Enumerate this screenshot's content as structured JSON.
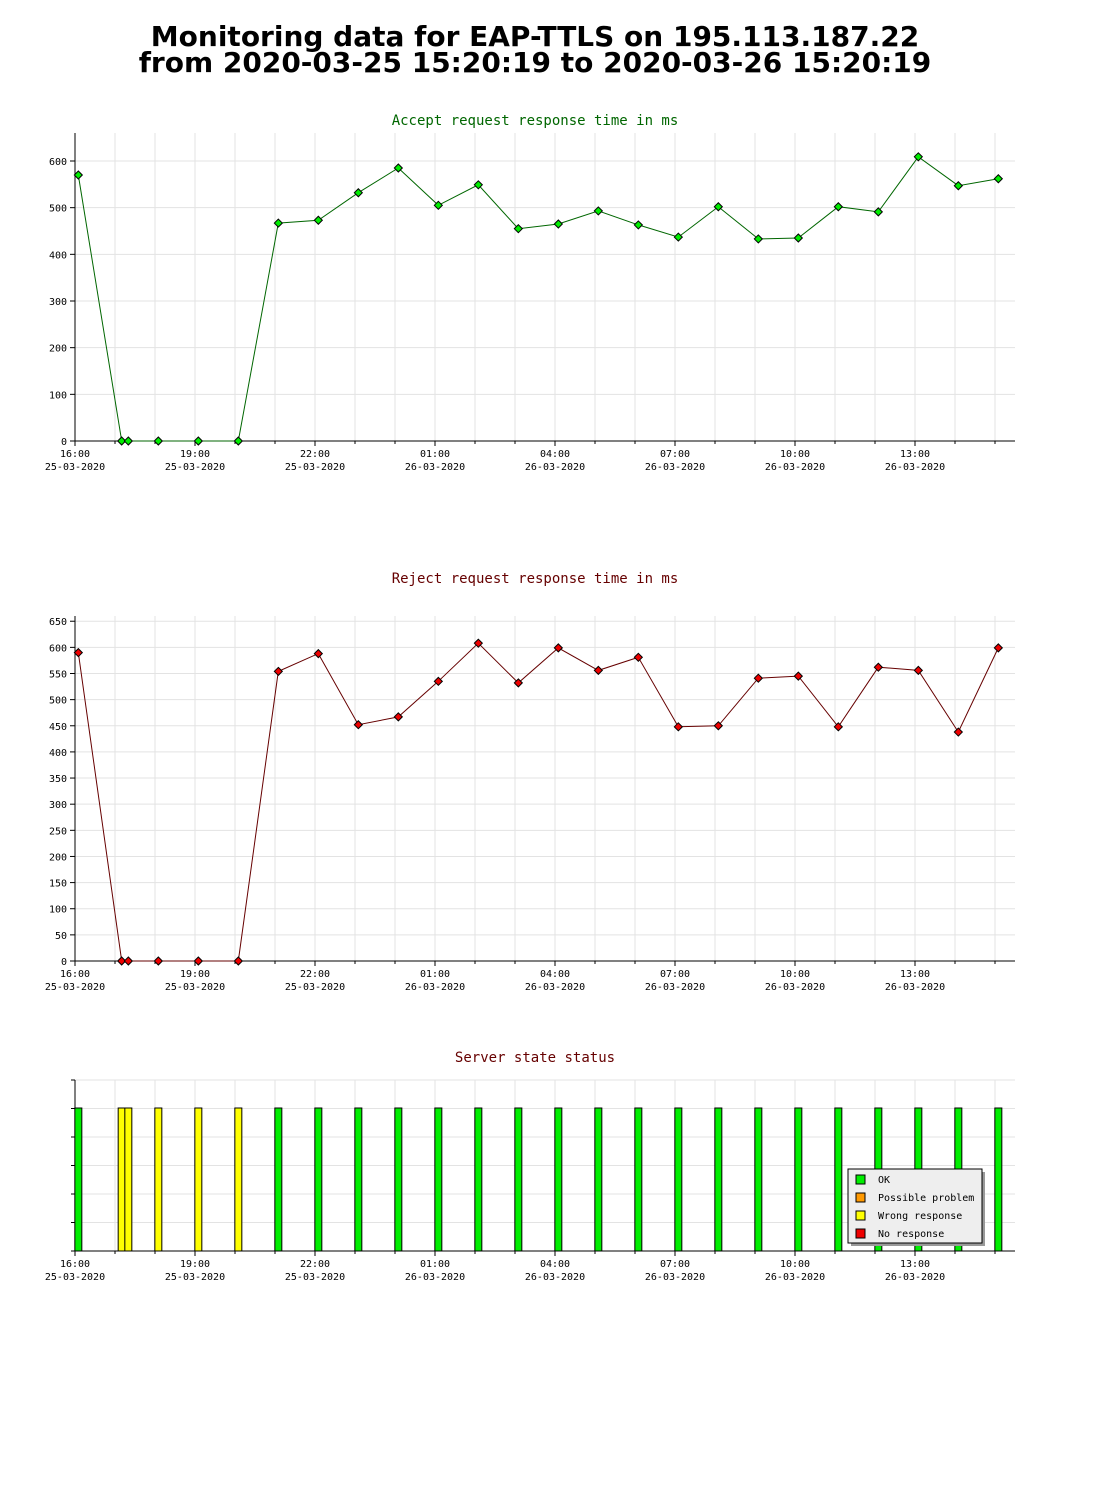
{
  "title": {
    "line1": "Monitoring data for EAP-TTLS on 195.113.187.22",
    "line2": "from 2020-03-25 15:20:19 to 2020-03-26 15:20:19"
  },
  "x_axis": {
    "ticks": [
      {
        "time": "16:00",
        "date": "25-03-2020"
      },
      {
        "time": "19:00",
        "date": "25-03-2020"
      },
      {
        "time": "22:00",
        "date": "25-03-2020"
      },
      {
        "time": "01:00",
        "date": "26-03-2020"
      },
      {
        "time": "04:00",
        "date": "26-03-2020"
      },
      {
        "time": "07:00",
        "date": "26-03-2020"
      },
      {
        "time": "10:00",
        "date": "26-03-2020"
      },
      {
        "time": "13:00",
        "date": "26-03-2020"
      }
    ]
  },
  "chart_data": [
    {
      "type": "line",
      "title": "Accept request response time in ms",
      "xlabel": "",
      "ylabel": "",
      "ylim": [
        0,
        660
      ],
      "yticks": [
        0,
        100,
        200,
        300,
        400,
        500,
        600
      ],
      "grid": true,
      "color": "#00ee00",
      "line_color": "#006600",
      "title_color": "#006600",
      "x": [
        "2020-03-25 16:05",
        "2020-03-25 17:10",
        "2020-03-25 17:20",
        "2020-03-25 18:05",
        "2020-03-25 19:05",
        "2020-03-25 20:05",
        "2020-03-25 21:05",
        "2020-03-25 22:05",
        "2020-03-25 23:05",
        "2020-03-26 00:05",
        "2020-03-26 01:05",
        "2020-03-26 02:05",
        "2020-03-26 03:05",
        "2020-03-26 04:05",
        "2020-03-26 05:05",
        "2020-03-26 06:05",
        "2020-03-26 07:05",
        "2020-03-26 08:05",
        "2020-03-26 09:05",
        "2020-03-26 10:05",
        "2020-03-26 11:05",
        "2020-03-26 12:05",
        "2020-03-26 13:05",
        "2020-03-26 14:05",
        "2020-03-26 15:05"
      ],
      "values": [
        570,
        0,
        0,
        0,
        0,
        0,
        467,
        473,
        532,
        585,
        505,
        549,
        455,
        465,
        493,
        463,
        437,
        502,
        433,
        435,
        502,
        491,
        609,
        547,
        562
      ]
    },
    {
      "type": "line",
      "title": "Reject request response time in ms",
      "xlabel": "",
      "ylabel": "",
      "ylim": [
        0,
        660
      ],
      "yticks": [
        0,
        50,
        100,
        150,
        200,
        250,
        300,
        350,
        400,
        450,
        500,
        550,
        600,
        650
      ],
      "grid": true,
      "color": "#ee0000",
      "line_color": "#660000",
      "title_color": "#660000",
      "x": [
        "2020-03-25 16:05",
        "2020-03-25 17:10",
        "2020-03-25 17:20",
        "2020-03-25 18:05",
        "2020-03-25 19:05",
        "2020-03-25 20:05",
        "2020-03-25 21:05",
        "2020-03-25 22:05",
        "2020-03-25 23:05",
        "2020-03-26 00:05",
        "2020-03-26 01:05",
        "2020-03-26 02:05",
        "2020-03-26 03:05",
        "2020-03-26 04:05",
        "2020-03-26 05:05",
        "2020-03-26 06:05",
        "2020-03-26 07:05",
        "2020-03-26 08:05",
        "2020-03-26 09:05",
        "2020-03-26 10:05",
        "2020-03-26 11:05",
        "2020-03-26 12:05",
        "2020-03-26 13:05",
        "2020-03-26 14:05",
        "2020-03-26 15:05"
      ],
      "values": [
        590,
        0,
        0,
        0,
        0,
        0,
        554,
        588,
        452,
        467,
        535,
        608,
        532,
        599,
        556,
        581,
        448,
        450,
        541,
        545,
        448,
        562,
        556,
        438,
        599
      ]
    },
    {
      "type": "bar",
      "title": "Server state status",
      "xlabel": "",
      "ylabel": "",
      "grid": true,
      "title_color": "#660000",
      "x": [
        "2020-03-25 16:05",
        "2020-03-25 17:10",
        "2020-03-25 17:20",
        "2020-03-25 18:05",
        "2020-03-25 19:05",
        "2020-03-25 20:05",
        "2020-03-25 21:05",
        "2020-03-25 22:05",
        "2020-03-25 23:05",
        "2020-03-26 00:05",
        "2020-03-26 01:05",
        "2020-03-26 02:05",
        "2020-03-26 03:05",
        "2020-03-26 04:05",
        "2020-03-26 05:05",
        "2020-03-26 06:05",
        "2020-03-26 07:05",
        "2020-03-26 08:05",
        "2020-03-26 09:05",
        "2020-03-26 10:05",
        "2020-03-26 11:05",
        "2020-03-26 12:05",
        "2020-03-26 13:05",
        "2020-03-26 14:05",
        "2020-03-26 15:05"
      ],
      "status": [
        "OK",
        "Wrong response",
        "Wrong response",
        "Wrong response",
        "Wrong response",
        "Wrong response",
        "OK",
        "OK",
        "OK",
        "OK",
        "OK",
        "OK",
        "OK",
        "OK",
        "OK",
        "OK",
        "OK",
        "OK",
        "OK",
        "OK",
        "OK",
        "OK",
        "OK",
        "OK",
        "OK"
      ],
      "legend_position": "right",
      "legend": [
        {
          "label": "OK",
          "color": "#00ee00"
        },
        {
          "label": "Possible problem",
          "color": "#ff9900"
        },
        {
          "label": "Wrong response",
          "color": "#ffff00"
        },
        {
          "label": "No response",
          "color": "#ee0000"
        }
      ]
    }
  ]
}
